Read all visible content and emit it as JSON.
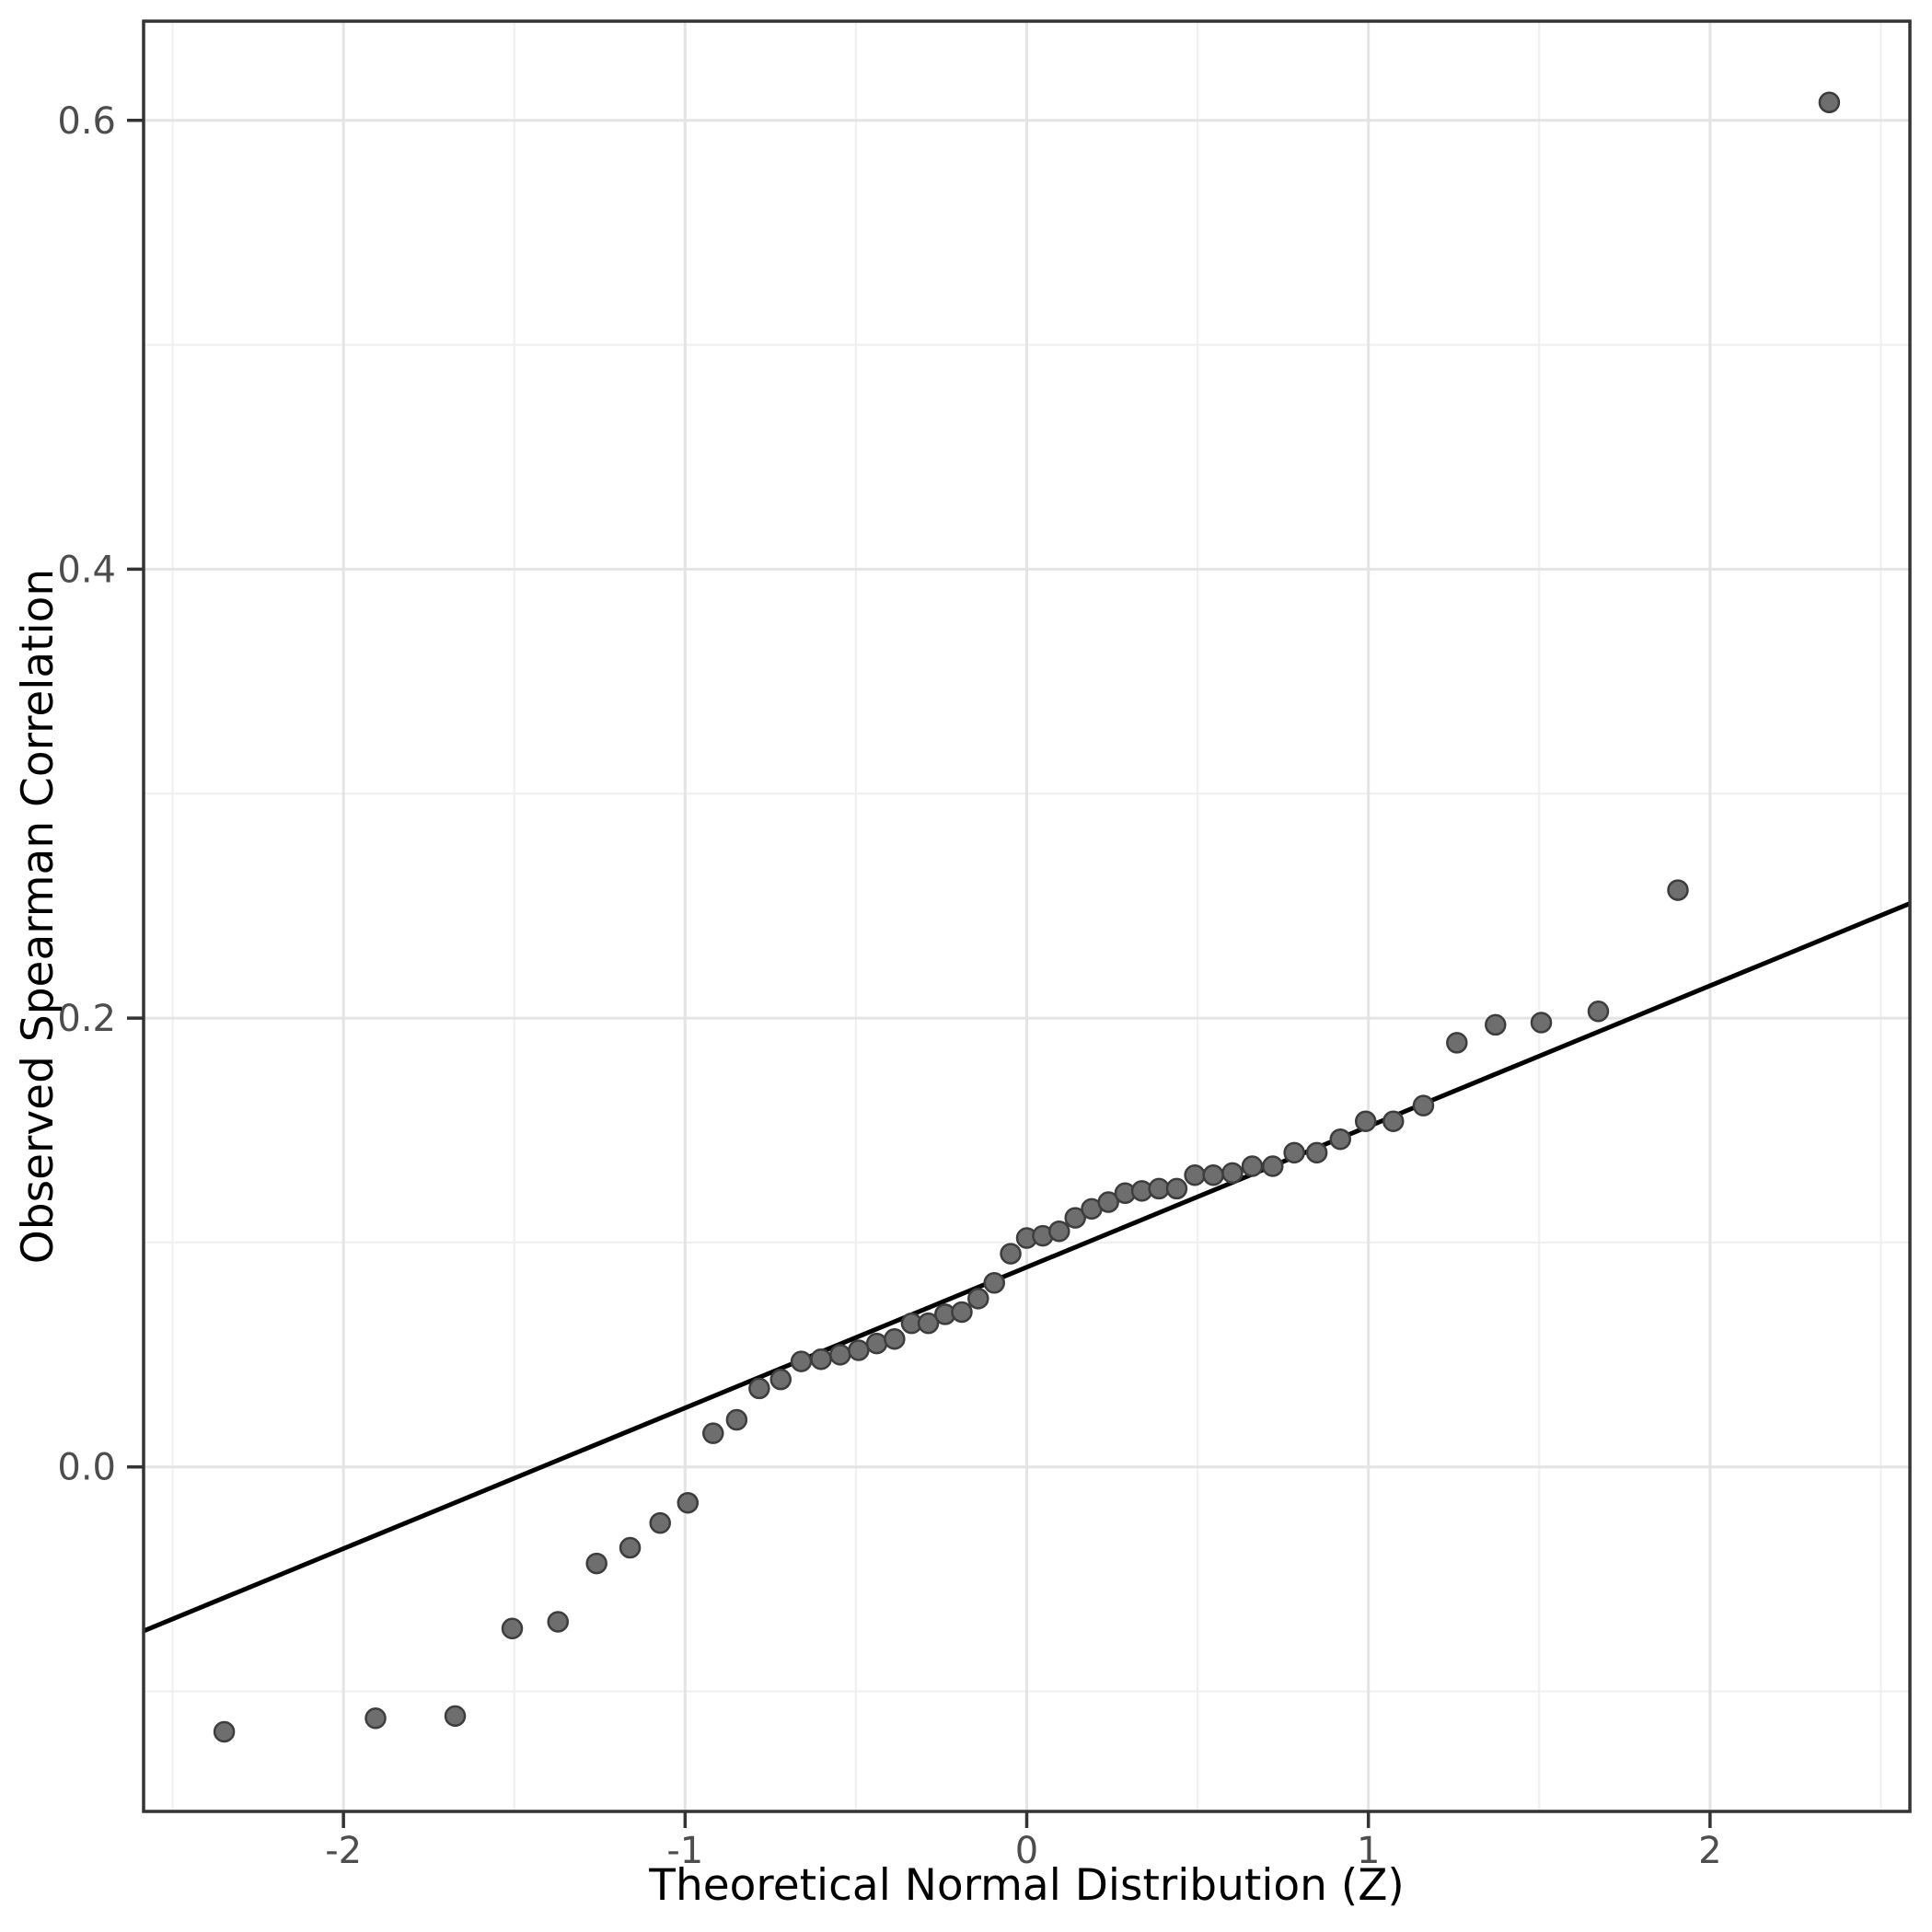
{
  "figure": {
    "background": "#FFFFFF"
  },
  "chart_data": {
    "type": "scatter",
    "title": "",
    "xlabel": "Theoretical Normal Distribution (Z)",
    "ylabel": "Observed Spearman Correlation",
    "xlim": [
      -2.585,
      2.585
    ],
    "ylim": [
      -0.1535,
      0.6442
    ],
    "grid": true,
    "legend_position": "none",
    "x_major_ticks": [
      {
        "value": -2,
        "label": "-2"
      },
      {
        "value": -1,
        "label": "-1"
      },
      {
        "value": 0,
        "label": "0"
      },
      {
        "value": 1,
        "label": "1"
      },
      {
        "value": 2,
        "label": "2"
      }
    ],
    "x_minor_gridlines": [
      -2.5,
      -1.5,
      -0.5,
      0.5,
      1.5,
      2.5
    ],
    "y_major_ticks": [
      {
        "value": 0.0,
        "label": "0.0"
      },
      {
        "value": 0.2,
        "label": "0.2"
      },
      {
        "value": 0.4,
        "label": "0.4"
      },
      {
        "value": 0.6,
        "label": "0.6"
      }
    ],
    "y_minor_gridlines": [
      -0.1,
      0.1,
      0.3,
      0.5
    ],
    "reference_line": {
      "slope": 0.0627,
      "intercept": 0.089
    },
    "series": [
      {
        "name": "sample-quantiles",
        "points": [
          [
            -2.349,
            -0.118
          ],
          [
            -1.906,
            -0.112
          ],
          [
            -1.673,
            -0.111
          ],
          [
            -1.506,
            -0.072
          ],
          [
            -1.372,
            -0.069
          ],
          [
            -1.259,
            -0.043
          ],
          [
            -1.161,
            -0.036
          ],
          [
            -1.073,
            -0.025
          ],
          [
            -0.992,
            -0.016
          ],
          [
            -0.918,
            0.015
          ],
          [
            -0.849,
            0.021
          ],
          [
            -0.783,
            0.035
          ],
          [
            -0.72,
            0.039
          ],
          [
            -0.66,
            0.047
          ],
          [
            -0.602,
            0.048
          ],
          [
            -0.546,
            0.05
          ],
          [
            -0.492,
            0.052
          ],
          [
            -0.439,
            0.055
          ],
          [
            -0.387,
            0.057
          ],
          [
            -0.337,
            0.064
          ],
          [
            -0.288,
            0.064
          ],
          [
            -0.239,
            0.068
          ],
          [
            -0.19,
            0.069
          ],
          [
            -0.142,
            0.075
          ],
          [
            -0.095,
            0.082
          ],
          [
            -0.047,
            0.095
          ],
          [
            0.0,
            0.102
          ],
          [
            0.047,
            0.103
          ],
          [
            0.095,
            0.105
          ],
          [
            0.142,
            0.111
          ],
          [
            0.19,
            0.115
          ],
          [
            0.239,
            0.118
          ],
          [
            0.288,
            0.122
          ],
          [
            0.337,
            0.123
          ],
          [
            0.387,
            0.124
          ],
          [
            0.439,
            0.124
          ],
          [
            0.492,
            0.13
          ],
          [
            0.546,
            0.13
          ],
          [
            0.602,
            0.131
          ],
          [
            0.66,
            0.134
          ],
          [
            0.72,
            0.134
          ],
          [
            0.783,
            0.14
          ],
          [
            0.849,
            0.14
          ],
          [
            0.918,
            0.146
          ],
          [
            0.992,
            0.154
          ],
          [
            1.073,
            0.154
          ],
          [
            1.161,
            0.161
          ],
          [
            1.259,
            0.189
          ],
          [
            1.372,
            0.197
          ],
          [
            1.506,
            0.198
          ],
          [
            1.673,
            0.203
          ],
          [
            1.906,
            0.257
          ],
          [
            2.349,
            0.608
          ]
        ]
      }
    ]
  },
  "style": {
    "point_fill": "#6E6E6E",
    "point_stroke": "#3D3D3D",
    "reference_line_color": "#000000",
    "grid_major_color": "#E4E4E4",
    "grid_minor_color": "#F0F0F0",
    "panel_border_color": "#343434",
    "tick_mark_color": "#333333",
    "tick_label_color": "#4D4D4D",
    "axis_title_color": "#000000"
  }
}
